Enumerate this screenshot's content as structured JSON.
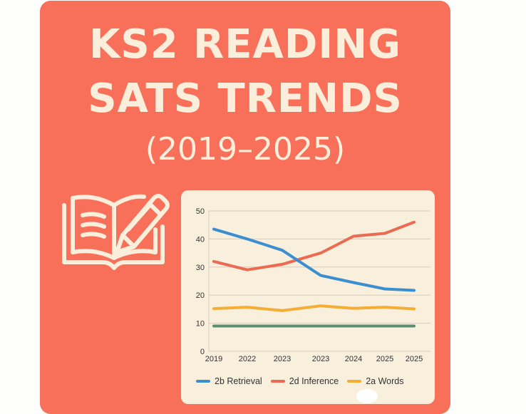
{
  "header": {
    "title_line1": "KS2 READING",
    "title_line2": "SATS TRENDS",
    "title_line3": "(2019–2025)"
  },
  "icon": "book-and-pencil-icon",
  "colors": {
    "background": "#f9705a",
    "title_text": "#fbefdc",
    "panel": "#f8efdd",
    "retrieval": "#3b8fd0",
    "inference": "#ec6a52",
    "words": "#f4ad35",
    "constant": "#5a8f74",
    "grid": "#d9ccb7"
  },
  "chart_data": {
    "type": "line",
    "title": "KS2 Reading SATs Trends (2019–2025)",
    "xlabel": "",
    "ylabel": "",
    "ylim": [
      0,
      50
    ],
    "yticks": [
      0,
      10,
      20,
      30,
      40,
      50
    ],
    "grid": true,
    "legend_position": "bottom",
    "categories": [
      "2019",
      "2022",
      "2023",
      "2023",
      "2024",
      "2025",
      "2025"
    ],
    "series": [
      {
        "name": "2b Retrieval",
        "color": "#3b8fd0",
        "values": [
          43.5,
          40,
          36,
          27,
          24.5,
          22.2,
          21.7
        ]
      },
      {
        "name": "2d Inference",
        "color": "#ec6a52",
        "values": [
          32,
          29,
          31,
          35,
          41,
          42,
          46
        ]
      },
      {
        "name": "2a Words",
        "color": "#f4ad35",
        "values": [
          15.2,
          15.7,
          14.5,
          16.2,
          15.3,
          15.7,
          15.1
        ]
      },
      {
        "name": "",
        "color": "#5a8f74",
        "values": [
          9,
          9,
          9,
          9,
          9,
          9,
          9
        ]
      }
    ]
  },
  "legend": {
    "items": [
      {
        "label": "2b Retrieval",
        "color": "#3b8fd0"
      },
      {
        "label": "2d Inference",
        "color": "#ec6a52"
      },
      {
        "label": "2a Words",
        "color": "#f4ad35"
      }
    ]
  }
}
